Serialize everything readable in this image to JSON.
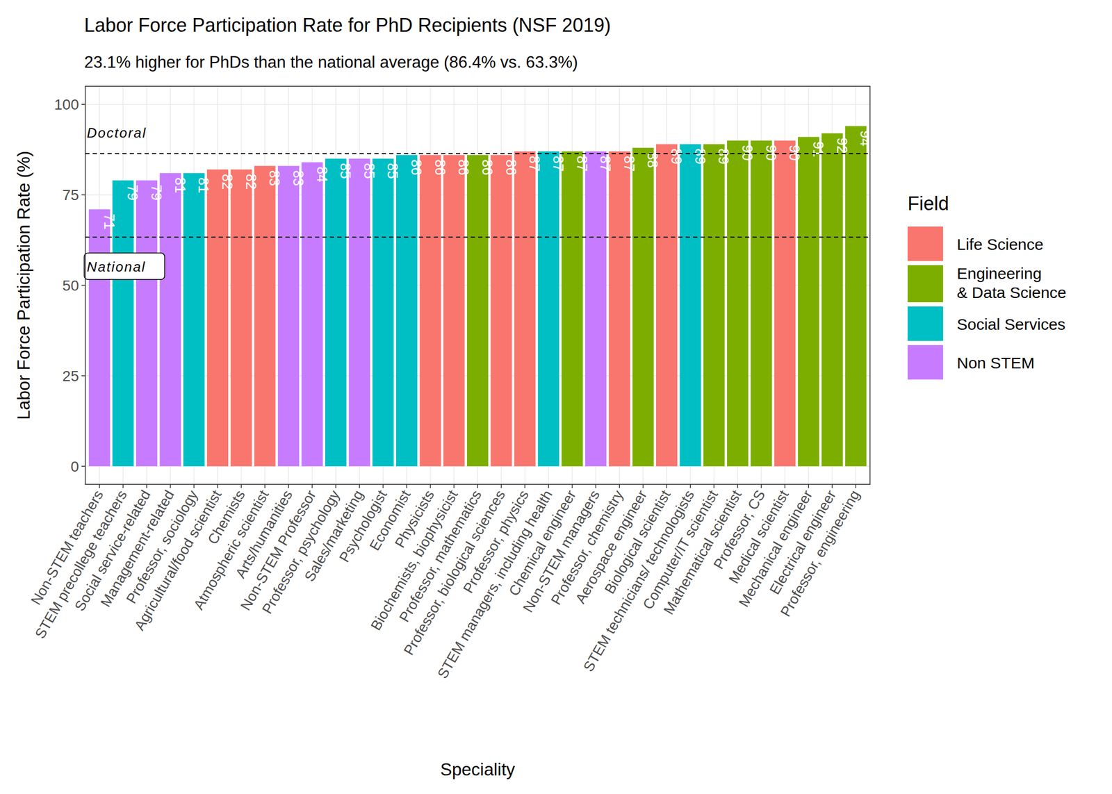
{
  "chart_data": {
    "type": "bar",
    "title": "Labor Force Participation Rate for PhD Recipients (NSF 2019)",
    "subtitle": "23.1% higher for PhDs than the national average (86.4% vs. 63.3%)",
    "x_label": "Speciality",
    "y_label": "Labor Force Participation Rate (%)",
    "legend_title": "Field",
    "legend": "right",
    "grid": true,
    "data_labels": true,
    "ylim": [
      -5,
      105
    ],
    "yticks": [
      0,
      25,
      50,
      75,
      100
    ],
    "categories": [
      "Non-STEM teachers",
      "STEM precollege teachers",
      "Social service-related",
      "Management-related",
      "Professor, sociology",
      "Agricultural/food scientist",
      "Chemists",
      "Atmospheric scientist",
      "Arts/humanities",
      "Non-STEM Professor",
      "Professor, psychology",
      "Sales/marketing",
      "Psychologist",
      "Economist",
      "Physicists",
      "Biochemists, biophysicist",
      "Professor, mathematics",
      "Professor, biological sciences",
      "Professor, physics",
      "STEM managers, including health",
      "Chemical engineer",
      "Non-STEM managers",
      "Professor, chemistry",
      "Aerospace engineer",
      "Biological scientist",
      "STEM technicians/ technologists",
      "Computer/IT scientist",
      "Mathematical scientist",
      "Professor, CS",
      "Medical scientist",
      "Mechanical engineer",
      "Electrical engineer",
      "Professor, engineering"
    ],
    "series": [
      {
        "name": "Life Science",
        "color": "#F8766D",
        "values": [
          null,
          null,
          null,
          null,
          null,
          82,
          82,
          83,
          null,
          null,
          null,
          null,
          null,
          null,
          86,
          86,
          null,
          86,
          87,
          null,
          null,
          null,
          87,
          null,
          89,
          null,
          null,
          null,
          null,
          90,
          null,
          null,
          null
        ]
      },
      {
        "name": "Engineering\n& Data Science",
        "color": "#7CAE00",
        "values": [
          null,
          null,
          null,
          null,
          null,
          null,
          null,
          null,
          null,
          null,
          null,
          null,
          null,
          null,
          null,
          null,
          86,
          null,
          null,
          null,
          87,
          null,
          null,
          88,
          null,
          null,
          89,
          90,
          90,
          null,
          91,
          92,
          94
        ]
      },
      {
        "name": "Social Services",
        "color": "#00BFC4",
        "values": [
          null,
          79,
          null,
          null,
          81,
          null,
          null,
          null,
          null,
          null,
          85,
          null,
          85,
          86,
          null,
          null,
          null,
          null,
          null,
          87,
          null,
          null,
          null,
          null,
          null,
          89,
          null,
          null,
          null,
          null,
          null,
          null,
          null
        ]
      },
      {
        "name": "Non STEM",
        "color": "#C77CFF",
        "values": [
          71,
          null,
          79,
          81,
          null,
          null,
          null,
          null,
          83,
          84,
          null,
          85,
          null,
          null,
          null,
          null,
          null,
          null,
          null,
          null,
          null,
          87,
          null,
          null,
          null,
          null,
          null,
          null,
          null,
          null,
          null,
          null,
          null
        ]
      }
    ],
    "annotations": [
      {
        "text": "Doctoral",
        "value": 86.4
      },
      {
        "text": "National",
        "value": 63.3
      }
    ]
  }
}
